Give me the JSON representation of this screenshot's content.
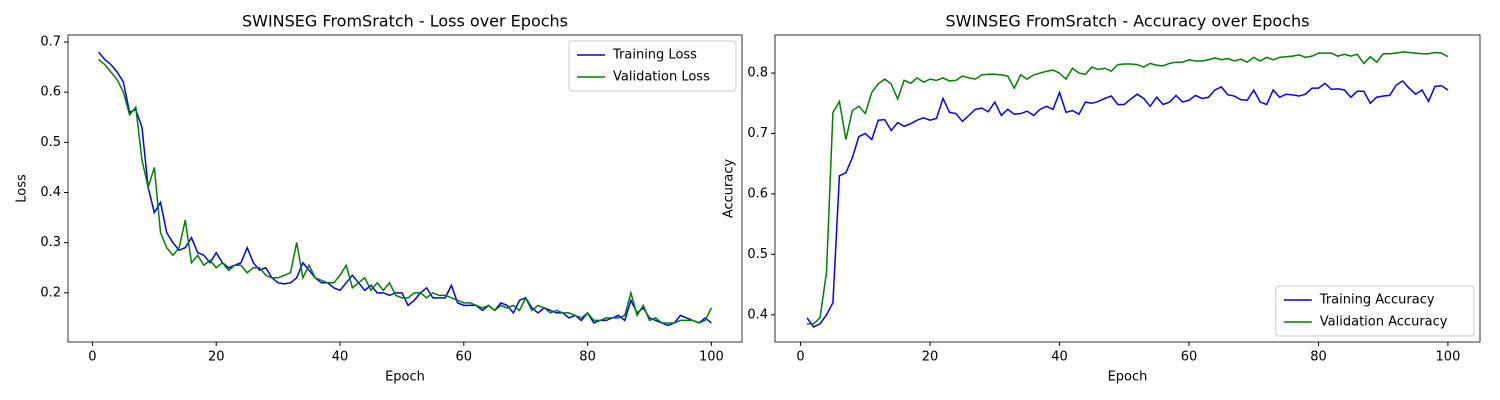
{
  "chart_data": [
    {
      "type": "line",
      "title": "SWINSEG FromSratch - Loss over Epochs",
      "x_label": "Epoch",
      "y_label": "Loss",
      "x": [
        1,
        2,
        3,
        4,
        5,
        6,
        7,
        8,
        9,
        10,
        11,
        12,
        13,
        14,
        15,
        16,
        17,
        18,
        19,
        20,
        21,
        22,
        23,
        24,
        25,
        26,
        27,
        28,
        29,
        30,
        31,
        32,
        33,
        34,
        35,
        36,
        37,
        38,
        39,
        40,
        41,
        42,
        43,
        44,
        45,
        46,
        47,
        48,
        49,
        50,
        51,
        52,
        53,
        54,
        55,
        56,
        57,
        58,
        59,
        60,
        61,
        62,
        63,
        64,
        65,
        66,
        67,
        68,
        69,
        70,
        71,
        72,
        73,
        74,
        75,
        76,
        77,
        78,
        79,
        80,
        81,
        82,
        83,
        84,
        85,
        86,
        87,
        88,
        89,
        90,
        91,
        92,
        93,
        94,
        95,
        96,
        97,
        98,
        99,
        100
      ],
      "series": [
        {
          "name": "Training Loss",
          "color": "#0000ff",
          "values": [
            0.68,
            0.665,
            0.655,
            0.64,
            0.62,
            0.56,
            0.565,
            0.53,
            0.41,
            0.36,
            0.38,
            0.32,
            0.3,
            0.285,
            0.29,
            0.31,
            0.28,
            0.275,
            0.26,
            0.28,
            0.26,
            0.25,
            0.255,
            0.26,
            0.29,
            0.26,
            0.245,
            0.25,
            0.23,
            0.22,
            0.218,
            0.22,
            0.23,
            0.26,
            0.245,
            0.23,
            0.22,
            0.22,
            0.21,
            0.205,
            0.22,
            0.235,
            0.22,
            0.205,
            0.215,
            0.2,
            0.2,
            0.195,
            0.2,
            0.2,
            0.175,
            0.185,
            0.2,
            0.21,
            0.19,
            0.19,
            0.19,
            0.215,
            0.18,
            0.175,
            0.175,
            0.175,
            0.165,
            0.175,
            0.165,
            0.18,
            0.175,
            0.16,
            0.185,
            0.19,
            0.17,
            0.16,
            0.17,
            0.165,
            0.16,
            0.16,
            0.15,
            0.155,
            0.145,
            0.16,
            0.14,
            0.145,
            0.145,
            0.15,
            0.155,
            0.145,
            0.185,
            0.16,
            0.17,
            0.15,
            0.145,
            0.14,
            0.135,
            0.14,
            0.155,
            0.15,
            0.145,
            0.14,
            0.15,
            0.14
          ]
        },
        {
          "name": "Validation Loss",
          "color": "#008000",
          "values": [
            0.665,
            0.655,
            0.64,
            0.625,
            0.6,
            0.555,
            0.57,
            0.465,
            0.41,
            0.45,
            0.32,
            0.29,
            0.275,
            0.29,
            0.345,
            0.26,
            0.275,
            0.255,
            0.265,
            0.25,
            0.26,
            0.245,
            0.255,
            0.255,
            0.24,
            0.25,
            0.25,
            0.235,
            0.23,
            0.23,
            0.235,
            0.24,
            0.3,
            0.23,
            0.255,
            0.23,
            0.225,
            0.22,
            0.22,
            0.235,
            0.255,
            0.21,
            0.22,
            0.23,
            0.205,
            0.22,
            0.205,
            0.22,
            0.195,
            0.19,
            0.19,
            0.2,
            0.2,
            0.19,
            0.2,
            0.195,
            0.195,
            0.19,
            0.185,
            0.18,
            0.18,
            0.175,
            0.17,
            0.175,
            0.165,
            0.175,
            0.17,
            0.175,
            0.165,
            0.19,
            0.165,
            0.175,
            0.17,
            0.16,
            0.165,
            0.16,
            0.16,
            0.155,
            0.15,
            0.16,
            0.145,
            0.145,
            0.15,
            0.15,
            0.15,
            0.155,
            0.2,
            0.155,
            0.175,
            0.145,
            0.15,
            0.14,
            0.14,
            0.14,
            0.145,
            0.145,
            0.145,
            0.14,
            0.145,
            0.17
          ]
        }
      ],
      "xlim": [
        -3.95,
        104.95
      ],
      "xticks": [
        0,
        20,
        40,
        60,
        80,
        100
      ],
      "ylim": [
        0.102,
        0.714
      ],
      "yticks": [
        0.2,
        0.3,
        0.4,
        0.5,
        0.6,
        0.7
      ],
      "legend": "upper right"
    },
    {
      "type": "line",
      "title": "SWINSEG FromSratch - Accuracy over Epochs",
      "x_label": "Epoch",
      "y_label": "Accuracy",
      "x": [
        1,
        2,
        3,
        4,
        5,
        6,
        7,
        8,
        9,
        10,
        11,
        12,
        13,
        14,
        15,
        16,
        17,
        18,
        19,
        20,
        21,
        22,
        23,
        24,
        25,
        26,
        27,
        28,
        29,
        30,
        31,
        32,
        33,
        34,
        35,
        36,
        37,
        38,
        39,
        40,
        41,
        42,
        43,
        44,
        45,
        46,
        47,
        48,
        49,
        50,
        51,
        52,
        53,
        54,
        55,
        56,
        57,
        58,
        59,
        60,
        61,
        62,
        63,
        64,
        65,
        66,
        67,
        68,
        69,
        70,
        71,
        72,
        73,
        74,
        75,
        76,
        77,
        78,
        79,
        80,
        81,
        82,
        83,
        84,
        85,
        86,
        87,
        88,
        89,
        90,
        91,
        92,
        93,
        94,
        95,
        96,
        97,
        98,
        99,
        100
      ],
      "series": [
        {
          "name": "Training Accuracy",
          "color": "#0000ff",
          "values": [
            0.395,
            0.38,
            0.385,
            0.4,
            0.42,
            0.63,
            0.635,
            0.66,
            0.695,
            0.7,
            0.69,
            0.722,
            0.723,
            0.705,
            0.718,
            0.712,
            0.716,
            0.722,
            0.726,
            0.722,
            0.725,
            0.758,
            0.735,
            0.733,
            0.72,
            0.73,
            0.74,
            0.742,
            0.736,
            0.752,
            0.73,
            0.74,
            0.732,
            0.733,
            0.737,
            0.73,
            0.74,
            0.745,
            0.74,
            0.768,
            0.735,
            0.738,
            0.732,
            0.752,
            0.75,
            0.753,
            0.758,
            0.762,
            0.748,
            0.748,
            0.757,
            0.765,
            0.758,
            0.745,
            0.76,
            0.748,
            0.752,
            0.763,
            0.752,
            0.755,
            0.763,
            0.758,
            0.76,
            0.772,
            0.777,
            0.764,
            0.762,
            0.756,
            0.755,
            0.772,
            0.752,
            0.748,
            0.772,
            0.76,
            0.765,
            0.764,
            0.762,
            0.765,
            0.775,
            0.775,
            0.783,
            0.773,
            0.774,
            0.772,
            0.76,
            0.77,
            0.77,
            0.75,
            0.76,
            0.762,
            0.763,
            0.78,
            0.787,
            0.775,
            0.765,
            0.772,
            0.753,
            0.778,
            0.779,
            0.772
          ]
        },
        {
          "name": "Validation Accuracy",
          "color": "#008000",
          "values": [
            0.385,
            0.385,
            0.395,
            0.47,
            0.735,
            0.753,
            0.69,
            0.738,
            0.745,
            0.733,
            0.768,
            0.782,
            0.79,
            0.782,
            0.757,
            0.788,
            0.783,
            0.792,
            0.785,
            0.79,
            0.788,
            0.792,
            0.787,
            0.788,
            0.795,
            0.792,
            0.79,
            0.797,
            0.798,
            0.798,
            0.797,
            0.795,
            0.775,
            0.797,
            0.79,
            0.797,
            0.8,
            0.803,
            0.805,
            0.8,
            0.79,
            0.808,
            0.8,
            0.798,
            0.81,
            0.806,
            0.808,
            0.803,
            0.814,
            0.815,
            0.815,
            0.814,
            0.81,
            0.816,
            0.813,
            0.812,
            0.816,
            0.818,
            0.818,
            0.822,
            0.82,
            0.82,
            0.822,
            0.825,
            0.822,
            0.824,
            0.82,
            0.823,
            0.818,
            0.826,
            0.82,
            0.826,
            0.822,
            0.826,
            0.827,
            0.828,
            0.83,
            0.826,
            0.828,
            0.833,
            0.833,
            0.833,
            0.828,
            0.831,
            0.828,
            0.831,
            0.816,
            0.827,
            0.818,
            0.832,
            0.832,
            0.833,
            0.835,
            0.834,
            0.833,
            0.832,
            0.832,
            0.834,
            0.833,
            0.827
          ]
        }
      ],
      "xlim": [
        -3.95,
        104.95
      ],
      "xticks": [
        0,
        20,
        40,
        60,
        80,
        100
      ],
      "ylim": [
        0.355,
        0.863
      ],
      "yticks": [
        0.4,
        0.5,
        0.6,
        0.7,
        0.8
      ],
      "legend": "lower right"
    }
  ]
}
